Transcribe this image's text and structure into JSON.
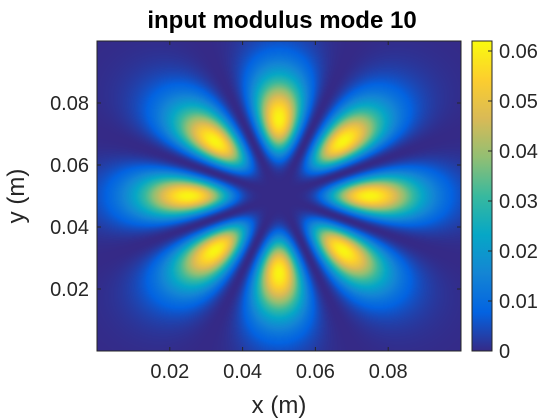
{
  "chart_data": {
    "type": "heatmap",
    "title": "input modulus mode 10",
    "xlabel": "x (m)",
    "ylabel": "y (m)",
    "xlim": [
      0,
      0.1
    ],
    "ylim": [
      0,
      0.1
    ],
    "x_ticks": [
      {
        "value": 0.02,
        "label": "0.02"
      },
      {
        "value": 0.04,
        "label": "0.04"
      },
      {
        "value": 0.06,
        "label": "0.06"
      },
      {
        "value": 0.08,
        "label": "0.08"
      }
    ],
    "y_ticks": [
      {
        "value": 0.02,
        "label": "0.02"
      },
      {
        "value": 0.04,
        "label": "0.04"
      },
      {
        "value": 0.06,
        "label": "0.06"
      },
      {
        "value": 0.08,
        "label": "0.08"
      }
    ],
    "colorbar": {
      "range": [
        0,
        0.062
      ],
      "ticks": [
        {
          "value": 0,
          "label": "0"
        },
        {
          "value": 0.01,
          "label": "0.01"
        },
        {
          "value": 0.02,
          "label": "0.02"
        },
        {
          "value": 0.03,
          "label": "0.03"
        },
        {
          "value": 0.04,
          "label": "0.04"
        },
        {
          "value": 0.05,
          "label": "0.05"
        },
        {
          "value": 0.06,
          "label": "0.06"
        }
      ],
      "colormap": "parula",
      "colors": [
        "#352a87",
        "#0363e1",
        "#1485d4",
        "#06a7c6",
        "#38b99e",
        "#92bf73",
        "#d9ba56",
        "#fcce2e",
        "#f9fb0e"
      ]
    },
    "field": {
      "center": [
        0.05,
        0.05
      ],
      "lobe_count": 8,
      "lobe_angles_deg": [
        90,
        45,
        0,
        -45,
        -90,
        -135,
        180,
        135
      ],
      "lobe_peak_radius": 0.025,
      "peak_value": 0.061,
      "mode_profile": "cos^2(4*theta) * (r/r0)^8 * exp(8*(1 - r/r0))",
      "background_value": 0
    }
  }
}
